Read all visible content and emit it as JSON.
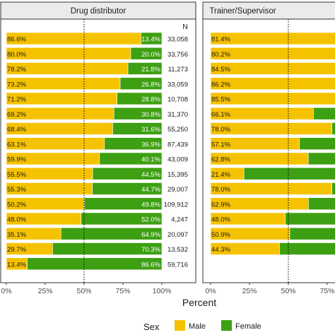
{
  "colors": {
    "male": "#F5C200",
    "female": "#3DA012",
    "strip_bg": "#EBEBEB",
    "panel_border": "#333333",
    "ref_line": "#000000"
  },
  "chart_data": {
    "type": "bar",
    "orientation": "horizontal",
    "stacked": true,
    "xlabel": "Percent",
    "x_ticks": [
      "0%",
      "25%",
      "50%",
      "75%",
      "100%"
    ],
    "xlim": [
      0,
      100
    ],
    "reference_line": 50,
    "legend": {
      "title": "Sex",
      "position": "bottom",
      "items": [
        {
          "label": "Male",
          "color_key": "male"
        },
        {
          "label": "Female",
          "color_key": "female"
        }
      ]
    },
    "panels": [
      {
        "title": "Drug distributor",
        "n_header": "N",
        "male_labels": [
          "86.6%",
          "80.0%",
          "78.2%",
          "73.2%",
          "71.2%",
          "69.2%",
          "68.4%",
          "63.1%",
          "59.9%",
          "55.5%",
          "55.3%",
          "50.2%",
          "48.0%",
          "35.1%",
          "29.7%",
          "13.4%"
        ],
        "female_labels": [
          "13.4%",
          "20.0%",
          "21.8%",
          "26.8%",
          "28.8%",
          "30.8%",
          "31.6%",
          "36.9%",
          "40.1%",
          "44.5%",
          "44.7%",
          "49.8%",
          "52.0%",
          "64.9%",
          "70.3%",
          "86.6%"
        ],
        "male": [
          86.6,
          80.0,
          78.2,
          73.2,
          71.2,
          69.2,
          68.4,
          63.1,
          59.9,
          55.5,
          55.3,
          50.2,
          48.0,
          35.1,
          29.7,
          13.4
        ],
        "n": [
          "33,058",
          "33,756",
          "11,273",
          "33,059",
          "10,708",
          "31,370",
          "55,250",
          "87,439",
          "43,009",
          "15,395",
          "29,007",
          "109,912",
          "4,247",
          "20,097",
          "13,532",
          "59,716"
        ]
      },
      {
        "title": "Trainer/Supervisor",
        "male_labels": [
          "81.4%",
          "80.2%",
          "84.5%",
          "86.2%",
          "85.5%",
          "66.1%",
          "78.0%",
          "57.1%",
          "62.8%",
          "21.4%",
          "78.0%",
          "62.9%",
          "48.0%",
          "50.9%",
          "44.3%",
          ""
        ],
        "male": [
          81.4,
          80.2,
          84.5,
          86.2,
          85.5,
          66.1,
          78.0,
          57.1,
          62.8,
          21.4,
          78.0,
          62.9,
          48.0,
          50.9,
          44.3,
          null
        ]
      }
    ]
  }
}
